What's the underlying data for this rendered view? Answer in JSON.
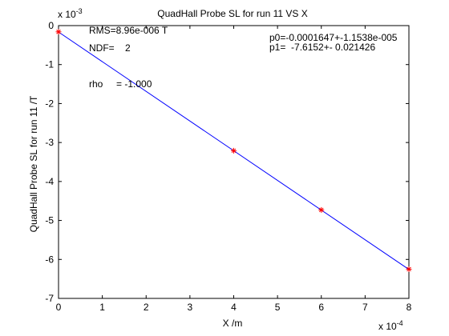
{
  "chart_data": {
    "type": "scatter",
    "title": "QuadHall Probe SL for run 11 VS X",
    "xlabel": "X /m",
    "ylabel": "QuadHall Probe SL for run 11 /T",
    "x_exponent_label": "x 10",
    "x_exponent": "-4",
    "y_exponent_label": "x 10",
    "y_exponent": "-3",
    "xlim": [
      0,
      8
    ],
    "ylim": [
      -7,
      0
    ],
    "x_ticks": [
      "0",
      "1",
      "2",
      "3",
      "4",
      "5",
      "6",
      "7",
      "8"
    ],
    "y_ticks": [
      "0",
      "-1",
      "-2",
      "-3",
      "-4",
      "-5",
      "-6",
      "-7"
    ],
    "points": {
      "x": [
        0,
        4,
        6,
        8
      ],
      "y": [
        -0.16,
        -3.21,
        -4.73,
        -6.25
      ],
      "marker_color": "#ff0000"
    },
    "fit_line": {
      "x": [
        0,
        8
      ],
      "y": [
        -0.1647,
        -6.257
      ],
      "color": "#0000ff"
    },
    "annotations": {
      "rms": "RMS=8.96e-006 T",
      "ndf": "NDF=    2",
      "rho": "rho     = -1.000",
      "p0": "p0=-0.0001647+-1.1538e-005",
      "p1": "p1=  -7.6152+- 0.021426"
    }
  }
}
